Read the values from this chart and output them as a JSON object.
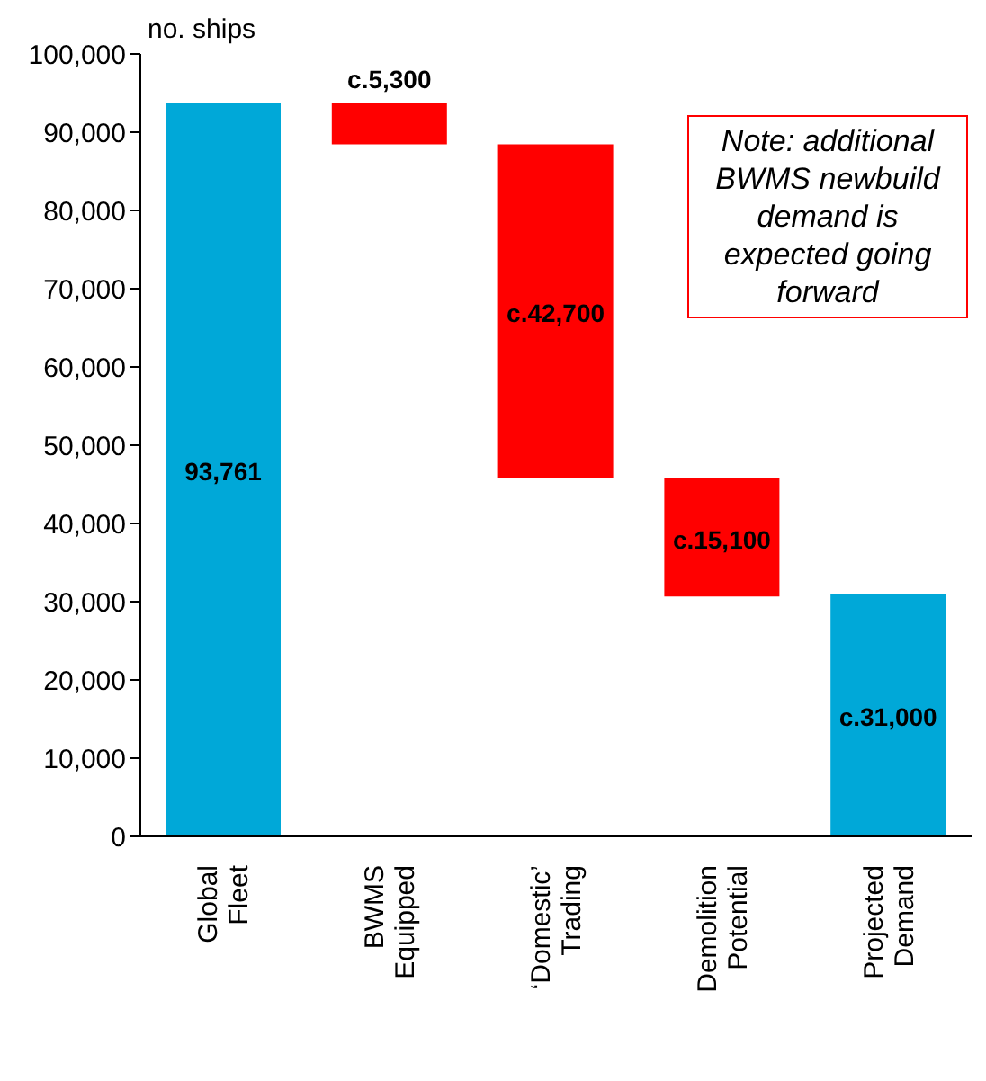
{
  "chart_data": {
    "type": "bar",
    "ylabel": "no. ships",
    "categories": [
      "Global Fleet",
      "BWMS Equipped",
      "‘Domestic’ Trading",
      "Demolition Potential",
      "Projected Demand"
    ],
    "values": [
      93761,
      5300,
      42700,
      15100,
      31000
    ],
    "base": [
      0,
      88461,
      45761,
      30661,
      0
    ],
    "colors": [
      "#00a8d8",
      "#ff0000",
      "#ff0000",
      "#ff0000",
      "#00a8d8"
    ],
    "value_labels": [
      "93,761",
      "c.5,300",
      "c.42,700",
      "c.15,100",
      "c.31,000"
    ],
    "ylim": [
      0,
      100000
    ],
    "yticks": [
      0,
      {
        "value": 10000,
        "label": "10,000"
      },
      {
        "value": 20000,
        "label": "20,000"
      },
      {
        "value": 30000,
        "label": "30,000"
      },
      {
        "value": 40000,
        "label": "40,000"
      },
      {
        "value": 50000,
        "label": "50,000"
      },
      {
        "value": 60000,
        "label": "60,000"
      },
      {
        "value": 70000,
        "label": "70,000"
      },
      {
        "value": 80000,
        "label": "80,000"
      },
      {
        "value": 90000,
        "label": "90,000"
      },
      {
        "value": 100000,
        "label": "100,000"
      }
    ],
    "annotations": [
      "Note: additional BWMS newbuild demand is expected going forward"
    ],
    "grid": false,
    "legend": false
  }
}
